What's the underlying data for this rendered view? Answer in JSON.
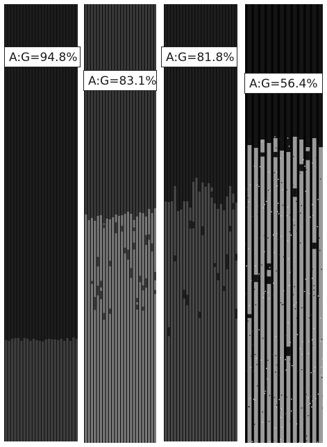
{
  "panels": [
    {
      "label": "A:G=94.8%"
    },
    {
      "label": "A:G=83.1%"
    },
    {
      "label": "A:G=81.8%"
    },
    {
      "label": "A:G=56.4%"
    }
  ],
  "colors": {
    "background": "#ffffff",
    "channel_dark": "#1e1e1e",
    "channel_filled": "#555555",
    "wall": "#0c0c0c"
  }
}
